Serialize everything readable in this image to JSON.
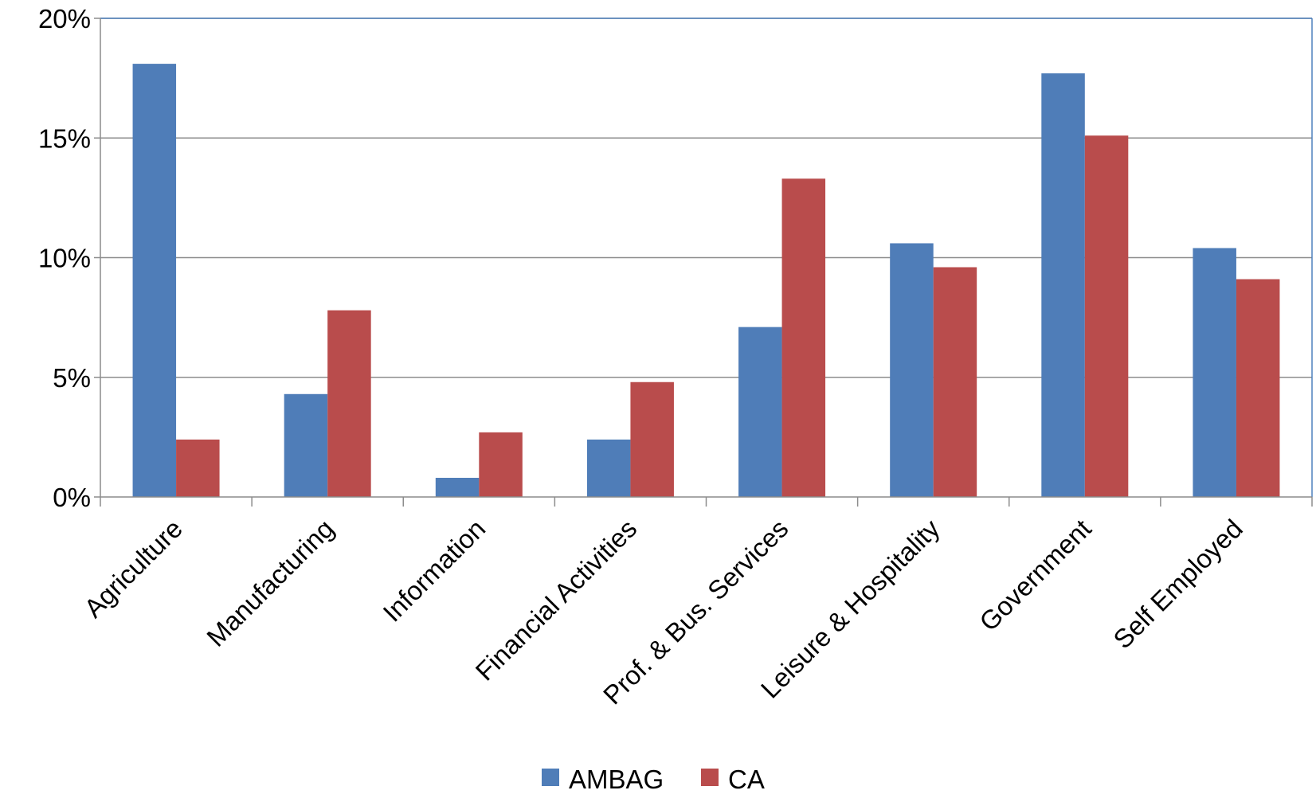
{
  "chart_data": {
    "type": "bar",
    "title": "",
    "xlabel": "",
    "ylabel": "",
    "categories": [
      "Agriculture",
      "Manufacturing",
      "Information",
      "Financial Activities",
      "Prof. & Bus. Services",
      "Leisure & Hospitality",
      "Government",
      "Self Employed"
    ],
    "series": [
      {
        "name": "AMBAG",
        "color": "#4F7DB8",
        "values": [
          18.1,
          4.3,
          0.8,
          2.4,
          7.1,
          10.6,
          17.7,
          10.4
        ]
      },
      {
        "name": "CA",
        "color": "#B94C4C",
        "values": [
          2.4,
          7.8,
          2.7,
          4.8,
          13.3,
          9.6,
          15.1,
          9.1
        ]
      }
    ],
    "ylim": [
      0,
      20
    ],
    "yticks": [
      0,
      5,
      10,
      15,
      20
    ],
    "ytick_labels": [
      "0%",
      "5%",
      "10%",
      "15%",
      "20%"
    ],
    "grid": true,
    "legend_position": "bottom-center",
    "colors": {
      "grid": "#8C8C8C",
      "axis": "#8C8C8C",
      "plot_border": "#4F81BD"
    }
  }
}
